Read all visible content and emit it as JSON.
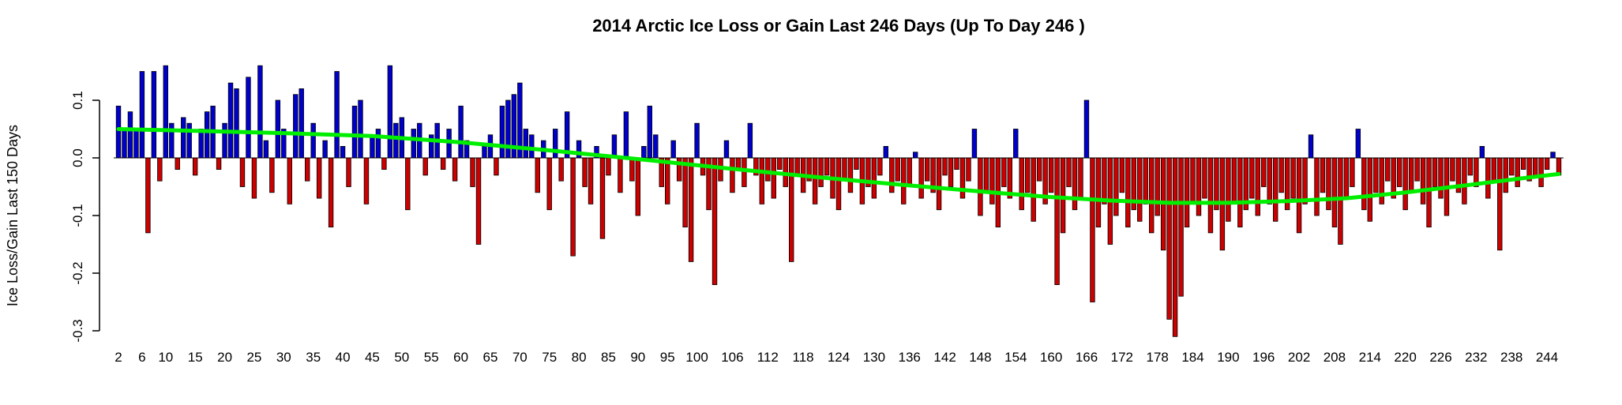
{
  "chart_data": {
    "type": "bar",
    "title": "2014 Arctic Ice Loss or Gain Last 246 Days (Up To Day 246 )",
    "xlabel": "",
    "ylabel": "Ice Loss/Gain Last 150 Days",
    "x_start_day": 2,
    "x_end_day": 246,
    "ylim": [
      -0.33,
      0.18
    ],
    "grid": false,
    "legend": "none",
    "positive_color": "#0000cd",
    "negative_color": "#cc0000",
    "bar_border_color": "#000000",
    "trend_color": "#00ee00",
    "yticks": [
      0.1,
      0.0,
      -0.1,
      -0.2,
      -0.3
    ],
    "ytick_labels": [
      "0.1",
      "0.0",
      "-0.1",
      "-0.2",
      "-0.3"
    ],
    "xticks": [
      2,
      6,
      10,
      15,
      20,
      25,
      30,
      35,
      40,
      45,
      50,
      55,
      60,
      65,
      70,
      75,
      80,
      85,
      90,
      95,
      100,
      106,
      112,
      118,
      124,
      130,
      136,
      142,
      148,
      154,
      160,
      166,
      172,
      178,
      184,
      190,
      196,
      202,
      208,
      214,
      220,
      226,
      232,
      238,
      244
    ],
    "values": [
      0.09,
      0.05,
      0.08,
      0.05,
      0.15,
      -0.13,
      0.15,
      -0.04,
      0.16,
      0.06,
      -0.02,
      0.07,
      0.06,
      -0.03,
      0.05,
      0.08,
      0.09,
      -0.02,
      0.06,
      0.13,
      0.12,
      -0.05,
      0.14,
      -0.07,
      0.16,
      0.03,
      -0.06,
      0.1,
      0.05,
      -0.08,
      0.11,
      0.12,
      -0.04,
      0.06,
      -0.07,
      0.03,
      -0.12,
      0.15,
      0.02,
      -0.05,
      0.09,
      0.1,
      -0.08,
      0.04,
      0.05,
      -0.02,
      0.16,
      0.06,
      0.07,
      -0.09,
      0.05,
      0.06,
      -0.03,
      0.04,
      0.06,
      -0.02,
      0.05,
      -0.04,
      0.09,
      0.03,
      -0.05,
      -0.15,
      0.02,
      0.04,
      -0.03,
      0.09,
      0.1,
      0.11,
      0.13,
      0.05,
      0.04,
      -0.06,
      0.03,
      -0.09,
      0.05,
      -0.04,
      0.08,
      -0.17,
      0.03,
      -0.05,
      -0.08,
      0.02,
      -0.14,
      -0.03,
      0.04,
      -0.06,
      0.08,
      -0.04,
      -0.1,
      0.02,
      0.09,
      0.04,
      -0.05,
      -0.08,
      0.03,
      -0.04,
      -0.12,
      -0.18,
      0.06,
      -0.03,
      -0.09,
      -0.22,
      -0.04,
      0.03,
      -0.06,
      -0.02,
      -0.05,
      0.06,
      -0.03,
      -0.08,
      -0.04,
      -0.07,
      -0.02,
      -0.05,
      -0.18,
      -0.03,
      -0.06,
      -0.04,
      -0.08,
      -0.05,
      -0.03,
      -0.07,
      -0.09,
      -0.04,
      -0.06,
      -0.02,
      -0.08,
      -0.05,
      -0.07,
      -0.03,
      0.02,
      -0.06,
      -0.04,
      -0.08,
      -0.05,
      0.01,
      -0.07,
      -0.04,
      -0.06,
      -0.09,
      -0.03,
      -0.05,
      -0.02,
      -0.07,
      -0.04,
      0.05,
      -0.1,
      -0.06,
      -0.08,
      -0.12,
      -0.05,
      -0.07,
      0.05,
      -0.09,
      -0.06,
      -0.11,
      -0.04,
      -0.08,
      -0.06,
      -0.22,
      -0.13,
      -0.05,
      -0.09,
      -0.07,
      0.1,
      -0.25,
      -0.12,
      -0.08,
      -0.15,
      -0.1,
      -0.06,
      -0.12,
      -0.09,
      -0.11,
      -0.08,
      -0.13,
      -0.1,
      -0.16,
      -0.28,
      -0.31,
      -0.24,
      -0.12,
      -0.08,
      -0.1,
      -0.07,
      -0.13,
      -0.09,
      -0.16,
      -0.11,
      -0.08,
      -0.12,
      -0.09,
      -0.07,
      -0.1,
      -0.05,
      -0.08,
      -0.11,
      -0.06,
      -0.09,
      -0.07,
      -0.13,
      -0.08,
      0.04,
      -0.1,
      -0.06,
      -0.09,
      -0.12,
      -0.15,
      -0.07,
      -0.05,
      0.05,
      -0.09,
      -0.11,
      -0.06,
      -0.08,
      -0.04,
      -0.07,
      -0.05,
      -0.09,
      -0.06,
      -0.04,
      -0.08,
      -0.12,
      -0.05,
      -0.07,
      -0.1,
      -0.04,
      -0.06,
      -0.08,
      -0.03,
      -0.05,
      0.02,
      -0.07,
      -0.04,
      -0.16,
      -0.06,
      -0.03,
      -0.05,
      -0.02,
      -0.04,
      -0.03,
      -0.05,
      -0.02,
      0.01,
      -0.03
    ],
    "trend": {
      "name": "smoothed-trend",
      "x": [
        2,
        15,
        30,
        45,
        60,
        75,
        90,
        105,
        120,
        135,
        150,
        160,
        170,
        180,
        190,
        200,
        210,
        220,
        230,
        240,
        246
      ],
      "y": [
        0.05,
        0.047,
        0.043,
        0.038,
        0.027,
        0.013,
        -0.002,
        -0.018,
        -0.033,
        -0.047,
        -0.06,
        -0.068,
        -0.074,
        -0.078,
        -0.078,
        -0.075,
        -0.07,
        -0.06,
        -0.048,
        -0.035,
        -0.028
      ]
    }
  }
}
